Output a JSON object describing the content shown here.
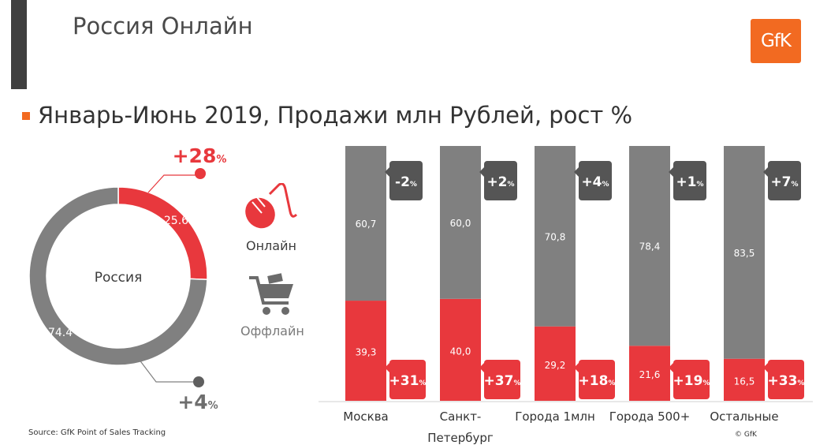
{
  "header": {
    "title": "Россия Онлайн",
    "logo_text": "GfK"
  },
  "subtitle": "Январь-Июнь 2019, Продажи млн Рублей, рост %",
  "source": "Source: GfK Point of Sales Tracking",
  "copyright": "© GfK",
  "legend": {
    "online": {
      "label": "Онлайн",
      "icon": "mouse-icon",
      "color": "#e8383d"
    },
    "offline": {
      "label": "Оффлайн",
      "icon": "shopping-cart-icon",
      "color": "#808080"
    }
  },
  "chart_data": [
    {
      "type": "pie",
      "center_label": "Россия",
      "slices": [
        {
          "name": "Онлайн",
          "value": 25.6,
          "label": "25.6",
          "growth": "+28",
          "color": "#e8383d"
        },
        {
          "name": "Оффлайн",
          "value": 74.4,
          "label": "74.4",
          "growth": "+4",
          "color": "#808080"
        }
      ],
      "growth_unit": "%"
    },
    {
      "type": "bar",
      "stacked": true,
      "categories": [
        "Москва",
        "Санкт-\nПетербург",
        "Города 1млн",
        "Города 500+",
        "Остальные"
      ],
      "series": [
        {
          "name": "Онлайн",
          "color": "#e8383d",
          "values": [
            39.3,
            40.0,
            29.2,
            21.6,
            16.5
          ],
          "labels": [
            "39,3",
            "40,0",
            "29,2",
            "21,6",
            "16,5"
          ],
          "growth": [
            "+31",
            "+37",
            "+18",
            "+19",
            "+33"
          ]
        },
        {
          "name": "Оффлайн",
          "color": "#808080",
          "values": [
            60.7,
            60.0,
            70.8,
            78.4,
            83.5
          ],
          "labels": [
            "60,7",
            "60,0",
            "70,8",
            "78,4",
            "83,5"
          ],
          "growth": [
            "-2",
            "+2",
            "+4",
            "+1",
            "+7"
          ]
        }
      ],
      "growth_unit": "%",
      "ylim": [
        0,
        100
      ]
    }
  ]
}
